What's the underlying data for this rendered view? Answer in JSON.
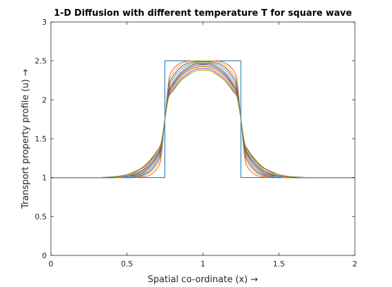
{
  "chart_data": {
    "type": "line",
    "title": "1-D Diffusion with different temperature T for square wave",
    "xlabel": "Spatial co-ordinate (x) →",
    "ylabel": "Transport property profile (u) →",
    "xlim": [
      0,
      2
    ],
    "ylim": [
      0,
      3
    ],
    "xticks": [
      0,
      0.5,
      1,
      1.5,
      2
    ],
    "xtick_labels": [
      "0",
      "0.5",
      "1",
      "1.5",
      "2"
    ],
    "yticks": [
      0,
      0.5,
      1,
      1.5,
      2,
      2.5,
      3
    ],
    "ytick_labels": [
      "0",
      "0.5",
      "1",
      "1.5",
      "2",
      "2.5",
      "3"
    ],
    "grid": false,
    "legend": "none",
    "x": [
      0,
      0.1,
      0.2,
      0.3,
      0.4,
      0.45,
      0.5,
      0.55,
      0.6,
      0.65,
      0.7,
      0.725,
      0.75,
      0.775,
      0.8,
      0.85,
      0.9,
      0.95,
      1.0,
      1.05,
      1.1,
      1.15,
      1.2,
      1.225,
      1.25,
      1.275,
      1.3,
      1.35,
      1.4,
      1.45,
      1.5,
      1.55,
      1.6,
      1.7,
      1.8,
      1.9,
      2.0
    ],
    "initial_condition": {
      "color": "#0072BD",
      "x": [
        0,
        0.75,
        0.75,
        1.25,
        1.25,
        2
      ],
      "y": [
        1,
        1,
        2.5,
        2.5,
        1,
        1
      ]
    },
    "series": [
      {
        "color": "#D95319",
        "values": [
          1,
          1,
          1,
          1,
          1,
          1,
          1,
          1,
          1.01,
          1.03,
          1.12,
          1.26,
          1.75,
          2.24,
          2.38,
          2.47,
          2.5,
          2.5,
          2.5,
          2.5,
          2.5,
          2.47,
          2.38,
          2.24,
          1.75,
          1.26,
          1.12,
          1.03,
          1.01,
          1,
          1,
          1,
          1,
          1,
          1,
          1,
          1
        ]
      },
      {
        "color": "#EDB120",
        "values": [
          1,
          1,
          1,
          1,
          1,
          1,
          1,
          1.01,
          1.02,
          1.06,
          1.17,
          1.3,
          1.75,
          2.2,
          2.33,
          2.44,
          2.49,
          2.5,
          2.5,
          2.5,
          2.49,
          2.44,
          2.33,
          2.2,
          1.75,
          1.3,
          1.17,
          1.06,
          1.02,
          1.01,
          1,
          1,
          1,
          1,
          1,
          1,
          1
        ]
      },
      {
        "color": "#7E2F8E",
        "values": [
          1,
          1,
          1,
          1,
          1,
          1,
          1,
          1.01,
          1.03,
          1.08,
          1.2,
          1.33,
          1.75,
          2.17,
          2.29,
          2.41,
          2.47,
          2.49,
          2.49,
          2.49,
          2.47,
          2.41,
          2.29,
          2.17,
          1.75,
          1.33,
          1.2,
          1.08,
          1.03,
          1.01,
          1,
          1,
          1,
          1,
          1,
          1,
          1
        ]
      },
      {
        "color": "#77AC30",
        "values": [
          1,
          1,
          1,
          1,
          1,
          1,
          1.01,
          1.02,
          1.04,
          1.1,
          1.23,
          1.35,
          1.75,
          2.14,
          2.26,
          2.38,
          2.45,
          2.48,
          2.48,
          2.48,
          2.45,
          2.38,
          2.26,
          2.14,
          1.75,
          1.35,
          1.23,
          1.1,
          1.04,
          1.02,
          1.01,
          1,
          1,
          1,
          1,
          1,
          1
        ]
      },
      {
        "color": "#4DBEEE",
        "values": [
          1,
          1,
          1,
          1,
          1,
          1,
          1.01,
          1.02,
          1.05,
          1.12,
          1.25,
          1.37,
          1.75,
          2.12,
          2.23,
          2.35,
          2.43,
          2.47,
          2.47,
          2.47,
          2.43,
          2.35,
          2.23,
          2.12,
          1.75,
          1.37,
          1.25,
          1.12,
          1.05,
          1.02,
          1.01,
          1,
          1,
          1,
          1,
          1,
          1
        ]
      },
      {
        "color": "#A2142F",
        "values": [
          1,
          1,
          1,
          1,
          1,
          1.01,
          1.02,
          1.03,
          1.06,
          1.14,
          1.27,
          1.39,
          1.75,
          2.1,
          2.2,
          2.33,
          2.41,
          2.46,
          2.46,
          2.46,
          2.41,
          2.33,
          2.2,
          2.1,
          1.75,
          1.39,
          1.27,
          1.14,
          1.06,
          1.03,
          1.02,
          1.01,
          1,
          1,
          1,
          1,
          1
        ]
      },
      {
        "color": "#0072BD",
        "values": [
          1,
          1,
          1,
          1,
          1,
          1.01,
          1.02,
          1.04,
          1.08,
          1.16,
          1.29,
          1.41,
          1.75,
          2.08,
          2.18,
          2.31,
          2.39,
          2.44,
          2.45,
          2.44,
          2.39,
          2.31,
          2.18,
          2.08,
          1.75,
          1.41,
          1.29,
          1.16,
          1.08,
          1.04,
          1.02,
          1.01,
          1,
          1,
          1,
          1,
          1
        ]
      },
      {
        "color": "#D95319",
        "values": [
          1,
          1,
          1,
          1,
          1.01,
          1.01,
          1.03,
          1.05,
          1.09,
          1.18,
          1.31,
          1.42,
          1.75,
          2.06,
          2.16,
          2.29,
          2.37,
          2.42,
          2.43,
          2.42,
          2.37,
          2.29,
          2.16,
          2.06,
          1.75,
          1.42,
          1.31,
          1.18,
          1.09,
          1.05,
          1.03,
          1.01,
          1.01,
          1,
          1,
          1,
          1
        ]
      },
      {
        "color": "#EDB120",
        "values": [
          1,
          1,
          1,
          1,
          1.01,
          1.02,
          1.03,
          1.06,
          1.1,
          1.2,
          1.32,
          1.43,
          1.75,
          2.05,
          2.14,
          2.27,
          2.35,
          2.41,
          2.42,
          2.41,
          2.35,
          2.27,
          2.14,
          2.05,
          1.75,
          1.43,
          1.32,
          1.2,
          1.1,
          1.06,
          1.03,
          1.02,
          1.01,
          1,
          1,
          1,
          1
        ]
      },
      {
        "color": "#7E2F8E",
        "values": [
          1,
          1,
          1,
          1,
          1.01,
          1.02,
          1.04,
          1.07,
          1.12,
          1.21,
          1.34,
          1.44,
          1.75,
          2.04,
          2.12,
          2.25,
          2.33,
          2.39,
          2.4,
          2.39,
          2.33,
          2.25,
          2.12,
          2.04,
          1.75,
          1.44,
          1.34,
          1.21,
          1.12,
          1.07,
          1.04,
          1.02,
          1.01,
          1,
          1,
          1,
          1
        ]
      },
      {
        "color": "#77AC30",
        "values": [
          1,
          1,
          1,
          1,
          1.01,
          1.02,
          1.04,
          1.08,
          1.13,
          1.22,
          1.35,
          1.45,
          1.75,
          2.03,
          2.1,
          2.23,
          2.31,
          2.37,
          2.38,
          2.37,
          2.31,
          2.23,
          2.1,
          2.03,
          1.75,
          1.45,
          1.35,
          1.22,
          1.13,
          1.08,
          1.04,
          1.02,
          1.01,
          1,
          1,
          1,
          1
        ]
      }
    ]
  }
}
